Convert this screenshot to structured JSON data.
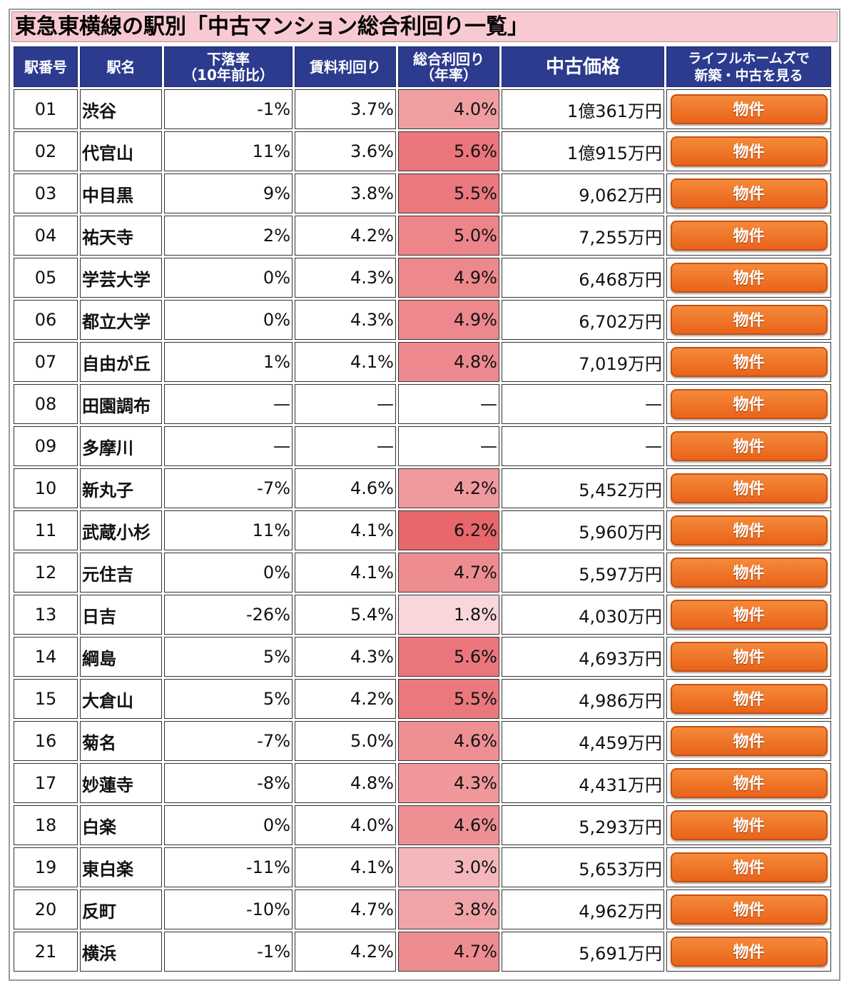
{
  "title": "東急東横線の駅別「中古マンション総合利回り一覧」",
  "headers": {
    "station_no": "駅番号",
    "station_name": "駅名",
    "decline_line1": "下落率",
    "decline_line2": "（10年前比）",
    "rent_yield": "賃料利回り",
    "total_yield_line1": "総合利回り",
    "total_yield_line2": "（年率）",
    "price": "中古価格",
    "lifull_line1": "ライフルホームズで",
    "lifull_line2": "新築・中古を見る"
  },
  "button_label": "物件",
  "colors": {
    "header_bg": "#2c3b8e",
    "title_bg": "#f9c9d2",
    "button": "#ee6f22"
  },
  "rows": [
    {
      "no": "01",
      "name": "渋谷",
      "decline": "-1%",
      "rent": "3.7%",
      "total": "4.0%",
      "total_value": 4.0,
      "price": "1億361万円"
    },
    {
      "no": "02",
      "name": "代官山",
      "decline": "11%",
      "rent": "3.6%",
      "total": "5.6%",
      "total_value": 5.6,
      "price": "1億915万円"
    },
    {
      "no": "03",
      "name": "中目黒",
      "decline": "9%",
      "rent": "3.8%",
      "total": "5.5%",
      "total_value": 5.5,
      "price": "9,062万円"
    },
    {
      "no": "04",
      "name": "祐天寺",
      "decline": "2%",
      "rent": "4.2%",
      "total": "5.0%",
      "total_value": 5.0,
      "price": "7,255万円"
    },
    {
      "no": "05",
      "name": "学芸大学",
      "decline": "0%",
      "rent": "4.3%",
      "total": "4.9%",
      "total_value": 4.9,
      "price": "6,468万円"
    },
    {
      "no": "06",
      "name": "都立大学",
      "decline": "0%",
      "rent": "4.3%",
      "total": "4.9%",
      "total_value": 4.9,
      "price": "6,702万円"
    },
    {
      "no": "07",
      "name": "自由が丘",
      "decline": "1%",
      "rent": "4.1%",
      "total": "4.8%",
      "total_value": 4.8,
      "price": "7,019万円"
    },
    {
      "no": "08",
      "name": "田園調布",
      "decline": "—",
      "rent": "—",
      "total": "—",
      "total_value": null,
      "price": "—"
    },
    {
      "no": "09",
      "name": "多摩川",
      "decline": "—",
      "rent": "—",
      "total": "—",
      "total_value": null,
      "price": "—"
    },
    {
      "no": "10",
      "name": "新丸子",
      "decline": "-7%",
      "rent": "4.6%",
      "total": "4.2%",
      "total_value": 4.2,
      "price": "5,452万円"
    },
    {
      "no": "11",
      "name": "武蔵小杉",
      "decline": "11%",
      "rent": "4.1%",
      "total": "6.2%",
      "total_value": 6.2,
      "price": "5,960万円"
    },
    {
      "no": "12",
      "name": "元住吉",
      "decline": "0%",
      "rent": "4.1%",
      "total": "4.7%",
      "total_value": 4.7,
      "price": "5,597万円"
    },
    {
      "no": "13",
      "name": "日吉",
      "decline": "-26%",
      "rent": "5.4%",
      "total": "1.8%",
      "total_value": 1.8,
      "price": "4,030万円"
    },
    {
      "no": "14",
      "name": "綱島",
      "decline": "5%",
      "rent": "4.3%",
      "total": "5.6%",
      "total_value": 5.6,
      "price": "4,693万円"
    },
    {
      "no": "15",
      "name": "大倉山",
      "decline": "5%",
      "rent": "4.2%",
      "total": "5.5%",
      "total_value": 5.5,
      "price": "4,986万円"
    },
    {
      "no": "16",
      "name": "菊名",
      "decline": "-7%",
      "rent": "5.0%",
      "total": "4.6%",
      "total_value": 4.6,
      "price": "4,459万円"
    },
    {
      "no": "17",
      "name": "妙蓮寺",
      "decline": "-8%",
      "rent": "4.8%",
      "total": "4.3%",
      "total_value": 4.3,
      "price": "4,431万円"
    },
    {
      "no": "18",
      "name": "白楽",
      "decline": "0%",
      "rent": "4.0%",
      "total": "4.6%",
      "total_value": 4.6,
      "price": "5,293万円"
    },
    {
      "no": "19",
      "name": "東白楽",
      "decline": "-11%",
      "rent": "4.1%",
      "total": "3.0%",
      "total_value": 3.0,
      "price": "5,653万円"
    },
    {
      "no": "20",
      "name": "反町",
      "decline": "-10%",
      "rent": "4.7%",
      "total": "3.8%",
      "total_value": 3.8,
      "price": "4,962万円"
    },
    {
      "no": "21",
      "name": "横浜",
      "decline": "-1%",
      "rent": "4.2%",
      "total": "4.7%",
      "total_value": 4.7,
      "price": "5,691万円"
    }
  ]
}
